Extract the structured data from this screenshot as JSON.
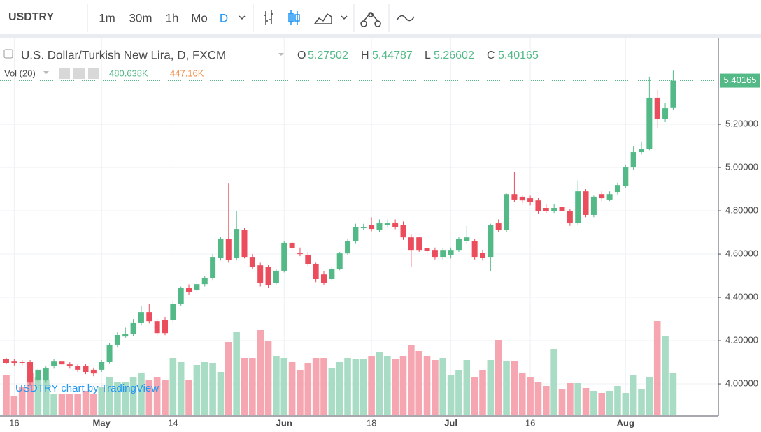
{
  "toolbar": {
    "symbol": "USDTRY",
    "intervals": [
      "1m",
      "30m",
      "1h",
      "Mo",
      "D"
    ]
  },
  "chart_data": {
    "type": "candlestick",
    "title": "U.S. Dollar/Turkish New Lira, D, FXCM",
    "ohlc_letters": [
      "O",
      "H",
      "L",
      "C"
    ],
    "last_value_labels": {
      "open": "5.27502",
      "high": "5.44787",
      "low": "5.26602",
      "close": "5.40165"
    },
    "categories": [
      null,
      "16",
      null,
      null,
      null,
      null,
      null,
      null,
      null,
      null,
      null,
      null,
      "May",
      null,
      null,
      null,
      null,
      null,
      null,
      null,
      null,
      "14",
      null,
      null,
      null,
      null,
      null,
      null,
      null,
      null,
      null,
      null,
      null,
      null,
      null,
      "Jun",
      null,
      null,
      null,
      null,
      null,
      null,
      null,
      null,
      null,
      null,
      "18",
      null,
      null,
      null,
      null,
      null,
      null,
      null,
      null,
      null,
      "Jul",
      null,
      null,
      null,
      null,
      null,
      null,
      null,
      null,
      null,
      "16",
      null,
      null,
      null,
      null,
      null,
      null,
      null,
      null,
      null,
      null,
      null,
      "Aug",
      null,
      null,
      null,
      null,
      null,
      null
    ],
    "open": [
      4.113,
      4.106,
      4.103,
      4.103,
      4.016,
      4.016,
      4.081,
      4.106,
      4.09,
      4.081,
      4.081,
      4.065,
      4.065,
      4.103,
      4.181,
      4.219,
      4.232,
      4.281,
      4.332,
      4.29,
      4.297,
      4.297,
      4.368,
      4.445,
      4.435,
      4.461,
      4.49,
      4.581,
      4.671,
      4.581,
      4.71,
      4.587,
      4.548,
      4.542,
      4.468,
      4.523,
      4.652,
      4.603,
      4.597,
      4.555,
      4.506,
      4.484,
      4.532,
      4.603,
      4.661,
      4.72,
      4.735,
      4.71,
      4.735,
      4.742,
      4.735,
      4.677,
      4.677,
      4.629,
      4.619,
      4.587,
      4.594,
      4.619,
      4.661,
      4.661,
      4.606,
      4.587,
      4.742,
      4.71,
      4.877,
      4.865,
      4.858,
      4.848,
      4.813,
      4.8,
      4.819,
      4.8,
      4.742,
      4.89,
      4.781,
      4.877,
      4.852,
      4.887,
      4.916,
      5.0,
      5.071,
      5.087,
      5.323,
      5.226,
      5.27502
    ],
    "high": [
      4.12,
      4.115,
      4.11,
      4.11,
      4.075,
      4.08,
      4.115,
      4.115,
      4.1,
      4.09,
      4.09,
      4.075,
      4.11,
      4.19,
      4.24,
      4.26,
      4.3,
      4.36,
      4.37,
      4.3,
      4.31,
      4.38,
      4.45,
      4.46,
      4.47,
      4.5,
      4.6,
      4.68,
      4.929,
      4.8,
      4.72,
      4.6,
      4.56,
      4.55,
      4.53,
      4.66,
      4.66,
      4.63,
      4.61,
      4.56,
      4.52,
      4.54,
      4.61,
      4.67,
      4.74,
      4.74,
      4.77,
      4.76,
      4.76,
      4.76,
      4.75,
      4.69,
      4.68,
      4.64,
      4.63,
      4.63,
      4.63,
      4.68,
      4.73,
      4.67,
      4.62,
      4.74,
      4.76,
      4.88,
      4.98,
      4.87,
      4.87,
      4.86,
      4.83,
      4.83,
      4.83,
      4.81,
      4.94,
      4.9,
      4.87,
      4.89,
      4.89,
      4.93,
      5.01,
      5.1,
      5.12,
      5.42,
      5.36,
      5.3,
      5.44787
    ],
    "low": [
      4.09,
      4.085,
      4.085,
      3.99,
      4.005,
      4.005,
      4.07,
      4.08,
      4.07,
      4.055,
      4.045,
      4.035,
      4.055,
      4.095,
      4.17,
      4.21,
      4.22,
      4.27,
      4.28,
      4.225,
      4.225,
      4.285,
      4.36,
      4.41,
      4.425,
      4.45,
      4.48,
      4.57,
      4.56,
      4.57,
      4.58,
      4.53,
      4.45,
      4.445,
      4.46,
      4.515,
      4.62,
      4.59,
      4.545,
      4.47,
      4.455,
      4.475,
      4.525,
      4.595,
      4.65,
      4.71,
      4.705,
      4.7,
      4.725,
      4.715,
      4.665,
      4.54,
      4.61,
      4.6,
      4.575,
      4.575,
      4.58,
      4.61,
      4.65,
      4.575,
      4.57,
      4.52,
      4.7,
      4.7,
      4.84,
      4.835,
      4.825,
      4.785,
      4.79,
      4.79,
      4.79,
      4.73,
      4.735,
      4.77,
      4.77,
      4.845,
      4.845,
      4.875,
      4.905,
      4.99,
      5.06,
      5.08,
      5.18,
      5.21,
      5.26602
    ],
    "close": [
      4.097,
      4.097,
      4.097,
      4.006,
      4.065,
      4.071,
      4.106,
      4.09,
      4.081,
      4.065,
      4.055,
      4.048,
      4.103,
      4.181,
      4.226,
      4.232,
      4.281,
      4.332,
      4.29,
      4.235,
      4.235,
      4.368,
      4.445,
      4.426,
      4.461,
      4.49,
      4.587,
      4.671,
      4.574,
      4.716,
      4.587,
      4.542,
      4.468,
      4.458,
      4.523,
      4.652,
      4.629,
      4.6,
      4.555,
      4.484,
      4.468,
      4.532,
      4.603,
      4.661,
      4.726,
      4.726,
      4.716,
      4.742,
      4.742,
      4.726,
      4.677,
      4.619,
      4.619,
      4.613,
      4.587,
      4.619,
      4.619,
      4.671,
      4.677,
      4.587,
      4.581,
      4.735,
      4.71,
      4.877,
      4.852,
      4.848,
      4.839,
      4.8,
      4.8,
      4.813,
      4.8,
      4.742,
      4.89,
      4.781,
      4.865,
      4.858,
      4.877,
      4.919,
      5.0,
      5.071,
      5.087,
      5.323,
      5.226,
      5.274,
      5.40165
    ],
    "ylim": [
      3.855,
      5.597
    ],
    "yticks": [
      {
        "value": 4.0,
        "label": "4.00000"
      },
      {
        "value": 4.2,
        "label": "4.20000"
      },
      {
        "value": 4.4,
        "label": "4.40000"
      },
      {
        "value": 4.6,
        "label": "4.60000"
      },
      {
        "value": 4.8,
        "label": "4.80000"
      },
      {
        "value": 5.0,
        "label": "5.00000"
      },
      {
        "value": 5.2,
        "label": "5.20000"
      }
    ],
    "grid": true,
    "colors": {
      "up": "#53b987",
      "down": "#eb4d5c"
    },
    "volume": {
      "name": "Vol (20)",
      "value_label": "480.638K",
      "ma_label": "447.16K",
      "vlim": [
        0,
        4326
      ],
      "colors": {
        "up": "#a9dcc4",
        "down": "#f5a6b0",
        "ma": "#f0883e"
      },
      "values": [
        456.6,
        216.3,
        320.4,
        480.7,
        440.6,
        400.6,
        240.3,
        240.3,
        240.3,
        240.3,
        280.4,
        240.3,
        320.4,
        440.6,
        376.5,
        376.5,
        440.6,
        480.7,
        400.6,
        440.6,
        400.6,
        656.9,
        616.8,
        400.6,
        576.8,
        616.8,
        600.8,
        496.7,
        841.2,
        961.3,
        656.9,
        656.9,
        977.3,
        857.2,
        680.9,
        656.9,
        616.8,
        520.7,
        600.8,
        656.9,
        656.9,
        544.7,
        616.8,
        656.9,
        640.9,
        640.9,
        680.9,
        721.0,
        680.9,
        640.9,
        680.9,
        809.1,
        737.0,
        680.9,
        632.9,
        656.9,
        456.6,
        520.7,
        632.9,
        440.6,
        520.7,
        632.9,
        865.2,
        624.9,
        624.9,
        480.7,
        440.6,
        376.5,
        336.5,
        761.0,
        304.4,
        368.5,
        368.5,
        312.4,
        280.4,
        256.4,
        280.4,
        336.5,
        256.4,
        456.6,
        304.4,
        440.6,
        1081.5,
        913.3,
        480.638
      ]
    },
    "watermark": "USDTRY chart by TradingView"
  }
}
